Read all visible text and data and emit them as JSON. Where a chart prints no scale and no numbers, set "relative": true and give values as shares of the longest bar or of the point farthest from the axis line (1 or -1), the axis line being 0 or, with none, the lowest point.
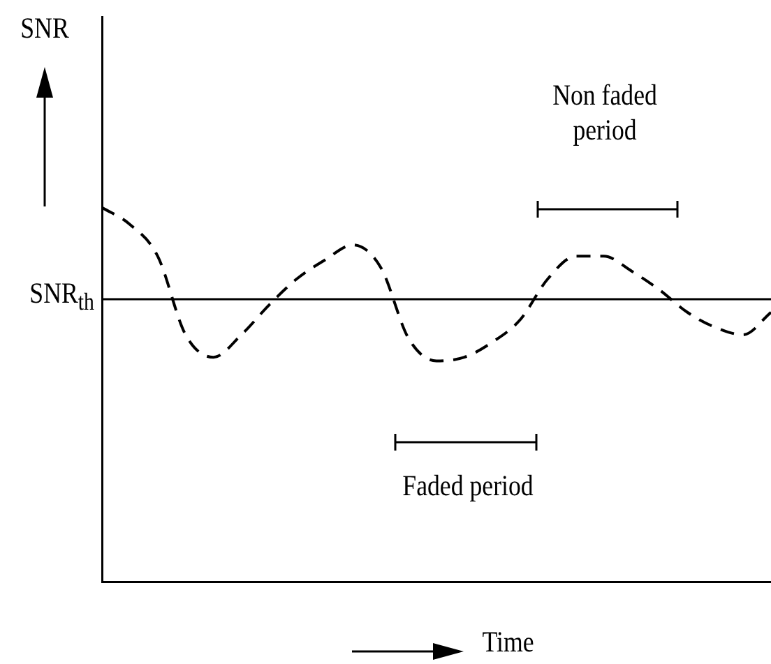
{
  "chart_data": {
    "type": "line",
    "relative": true,
    "xlabel": "Time",
    "categories": [
      null,
      null,
      null,
      null,
      null,
      null,
      null,
      null,
      null,
      null,
      null,
      null,
      null,
      null,
      null,
      null,
      null,
      null,
      null,
      null,
      null,
      null,
      null,
      null,
      null
    ],
    "series": [
      {
        "color": "#000000",
        "values": [
          1.0,
          0.955,
          0.87,
          0.66,
          0.6,
          0.66,
          0.74,
          0.81,
          0.86,
          0.9,
          0.84,
          0.65,
          0.59,
          0.6,
          0.64,
          0.7,
          0.81,
          0.87,
          0.87,
          0.83,
          0.78,
          0.72,
          0.68,
          0.66,
          0.72
        ]
      }
    ],
    "ref_lines": [
      {
        "axis": "y",
        "value": 0.755,
        "label": "SNR$_{th}$",
        "color": "#000000",
        "line_style": "solid"
      }
    ],
    "annotations": [
      "SNR",
      "Non faded period",
      "Faded period"
    ],
    "line_style": "dashed",
    "marker": "none",
    "grid": false,
    "legend": false,
    "tick_labels": false
  }
}
